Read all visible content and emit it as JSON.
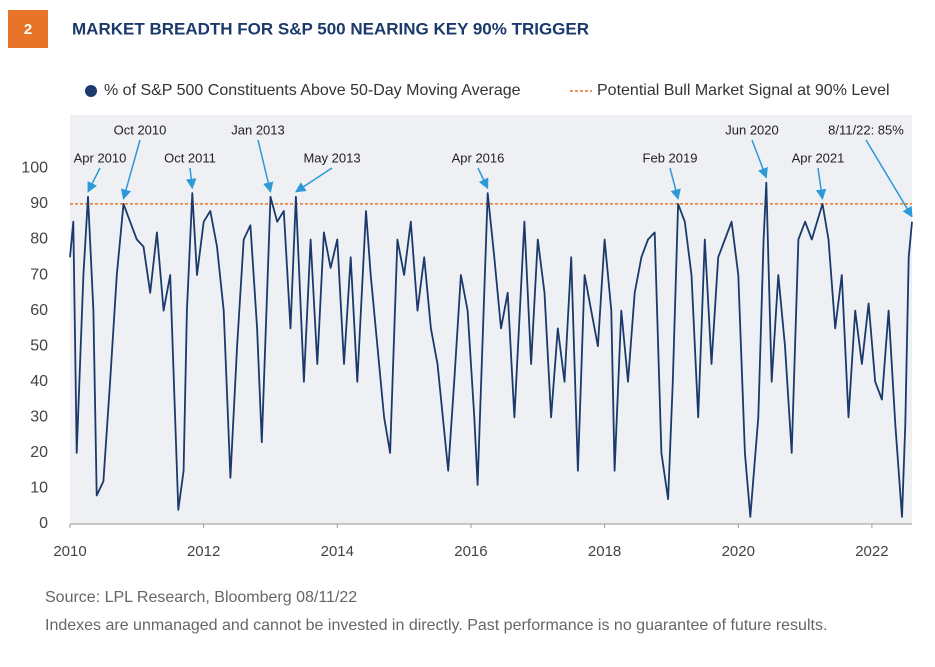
{
  "chart_data": {
    "type": "line",
    "figure_number": "2",
    "title": "MARKET BREADTH FOR S&P 500 NEARING KEY 90% TRIGGER",
    "source": "Source: LPL Research, Bloomberg  08/11/22",
    "note": "Indexes are unmanaged and cannot be invested in directly. Past performance is no guarantee of future results.",
    "x": [
      2010.0,
      2010.05,
      2010.1,
      2010.2,
      2010.27,
      2010.35,
      2010.4,
      2010.5,
      2010.6,
      2010.7,
      2010.8,
      2010.9,
      2011.0,
      2011.1,
      2011.2,
      2011.3,
      2011.4,
      2011.5,
      2011.62,
      2011.7,
      2011.75,
      2011.83,
      2011.9,
      2012.0,
      2012.1,
      2012.2,
      2012.3,
      2012.4,
      2012.5,
      2012.6,
      2012.7,
      2012.8,
      2012.87,
      2013.0,
      2013.1,
      2013.2,
      2013.3,
      2013.38,
      2013.5,
      2013.6,
      2013.7,
      2013.8,
      2013.9,
      2014.0,
      2014.1,
      2014.2,
      2014.3,
      2014.43,
      2014.5,
      2014.6,
      2014.7,
      2014.79,
      2014.9,
      2015.0,
      2015.1,
      2015.2,
      2015.3,
      2015.4,
      2015.5,
      2015.66,
      2015.75,
      2015.85,
      2015.95,
      2016.05,
      2016.1,
      2016.25,
      2016.35,
      2016.45,
      2016.55,
      2016.65,
      2016.8,
      2016.9,
      2017.0,
      2017.1,
      2017.2,
      2017.3,
      2017.4,
      2017.5,
      2017.6,
      2017.7,
      2017.8,
      2017.9,
      2018.0,
      2018.1,
      2018.15,
      2018.25,
      2018.35,
      2018.45,
      2018.55,
      2018.65,
      2018.75,
      2018.85,
      2018.95,
      2019.02,
      2019.1,
      2019.2,
      2019.3,
      2019.4,
      2019.5,
      2019.6,
      2019.7,
      2019.8,
      2019.9,
      2020.0,
      2020.1,
      2020.18,
      2020.3,
      2020.38,
      2020.42,
      2020.5,
      2020.6,
      2020.7,
      2020.8,
      2020.9,
      2021.0,
      2021.1,
      2021.18,
      2021.26,
      2021.35,
      2021.45,
      2021.55,
      2021.65,
      2021.75,
      2021.85,
      2021.95,
      2022.05,
      2022.15,
      2022.25,
      2022.35,
      2022.45,
      2022.5,
      2022.55,
      2022.6
    ],
    "series": [
      {
        "name": "% of S&P 500 Constituents Above 50-Day Moving Average",
        "color": "#1b3a6b",
        "values": [
          75,
          85,
          20,
          70,
          92,
          60,
          8,
          12,
          40,
          70,
          90,
          85,
          80,
          78,
          65,
          82,
          60,
          70,
          4,
          15,
          60,
          93,
          70,
          85,
          88,
          78,
          60,
          13,
          50,
          80,
          84,
          55,
          23,
          92,
          85,
          88,
          55,
          92,
          40,
          80,
          45,
          82,
          72,
          80,
          45,
          75,
          40,
          88,
          70,
          50,
          30,
          20,
          80,
          70,
          85,
          60,
          75,
          55,
          45,
          15,
          40,
          70,
          60,
          30,
          11,
          93,
          75,
          55,
          65,
          30,
          85,
          45,
          80,
          65,
          30,
          55,
          40,
          75,
          15,
          70,
          60,
          50,
          80,
          60,
          15,
          60,
          40,
          65,
          75,
          80,
          82,
          20,
          7,
          40,
          90,
          85,
          70,
          30,
          80,
          45,
          75,
          80,
          85,
          70,
          20,
          2,
          30,
          80,
          96,
          40,
          70,
          50,
          20,
          80,
          85,
          80,
          85,
          90,
          80,
          55,
          70,
          30,
          60,
          45,
          62,
          40,
          35,
          60,
          28,
          2,
          28,
          75,
          85
        ]
      }
    ],
    "reference_line": {
      "name": "Potential Bull Market Signal at 90% Level",
      "value": 90,
      "color": "#e8742a"
    },
    "annotations": [
      {
        "text": "Apr 2010",
        "x": 2010.27,
        "y": 92
      },
      {
        "text": "Oct 2010",
        "x": 2010.8,
        "y": 90
      },
      {
        "text": "Oct 2011",
        "x": 2011.83,
        "y": 93
      },
      {
        "text": "Jan 2013",
        "x": 2013.0,
        "y": 92
      },
      {
        "text": "May 2013",
        "x": 2013.38,
        "y": 92
      },
      {
        "text": "Apr 2016",
        "x": 2016.25,
        "y": 93
      },
      {
        "text": "Feb 2019",
        "x": 2019.1,
        "y": 90
      },
      {
        "text": "Jun 2020",
        "x": 2020.42,
        "y": 96
      },
      {
        "text": "Apr 2021",
        "x": 2021.26,
        "y": 90
      },
      {
        "text": "8/11/22: 85%",
        "x": 2022.6,
        "y": 85
      }
    ],
    "xlim": [
      2010,
      2022.6
    ],
    "xticks": [
      2010,
      2012,
      2014,
      2016,
      2018,
      2020,
      2022
    ],
    "ylim": [
      0,
      115
    ],
    "yticks": [
      0,
      10,
      20,
      30,
      40,
      50,
      60,
      70,
      80,
      90,
      100
    ],
    "grid": false,
    "annotation_color": "#2b9ad6"
  }
}
